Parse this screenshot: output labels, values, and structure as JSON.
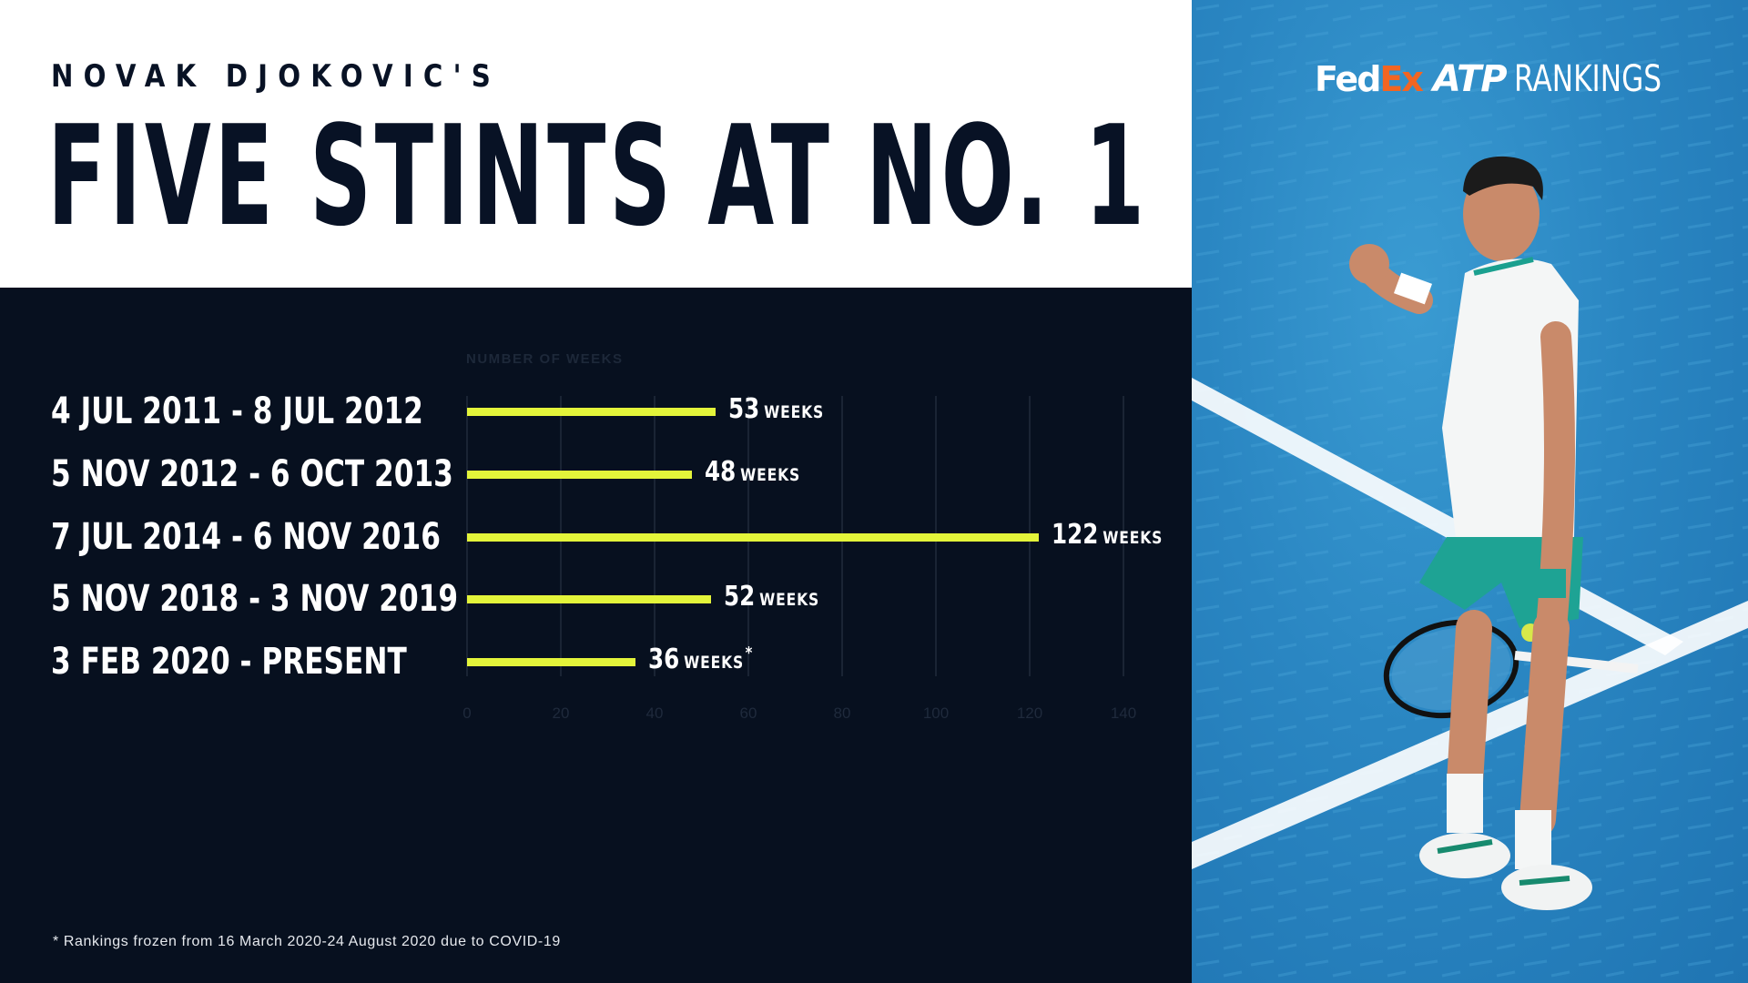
{
  "header": {
    "subtitle": "NOVAK DJOKOVIC'S",
    "title": "FIVE STINTS AT NO. 1"
  },
  "branding": {
    "fed": "Fed",
    "ex": "Ex",
    "atp": "ATP",
    "rankings": "RANKINGS",
    "colors": {
      "fedex_orange": "#f26522",
      "court_blue": "#2a86c2"
    }
  },
  "photo": {
    "description": "Novak Djokovic celebrating with fist pump on blue hard court, holding racket and ball"
  },
  "footnote": "* Rankings frozen from 16 March 2020-24 August 2020 due to COVID-19",
  "colors": {
    "background": "#07101f",
    "bar": "#e3f43a",
    "header_bg": "#ffffff",
    "text_dark": "#081225"
  },
  "chart_data": {
    "type": "bar",
    "orientation": "horizontal",
    "title": "FIVE STINTS AT NO. 1",
    "subtitle": "NOVAK DJOKOVIC'S",
    "xlabel": "NUMBER OF WEEKS",
    "ylabel": "",
    "categories": [
      "4 JUL 2011 - 8 JUL 2012",
      "5 NOV 2012 - 6 OCT 2013",
      "7 JUL 2014 - 6 NOV 2016",
      "5 NOV 2018 - 3 NOV 2019",
      "3 FEB 2020 - PRESENT"
    ],
    "values": [
      53,
      48,
      122,
      52,
      36
    ],
    "value_labels": [
      "53",
      "48",
      "122",
      "52",
      "36"
    ],
    "value_unit": "WEEKS",
    "annotations": [
      "",
      "",
      "",
      "",
      "*"
    ],
    "xlim": [
      0,
      140
    ],
    "xticks": [
      "0",
      "20",
      "40",
      "60",
      "80",
      "100",
      "120",
      "140"
    ],
    "grid": true,
    "legend": null,
    "footnote": "* Rankings frozen from 16 March 2020-24 August 2020 due to COVID-19"
  }
}
